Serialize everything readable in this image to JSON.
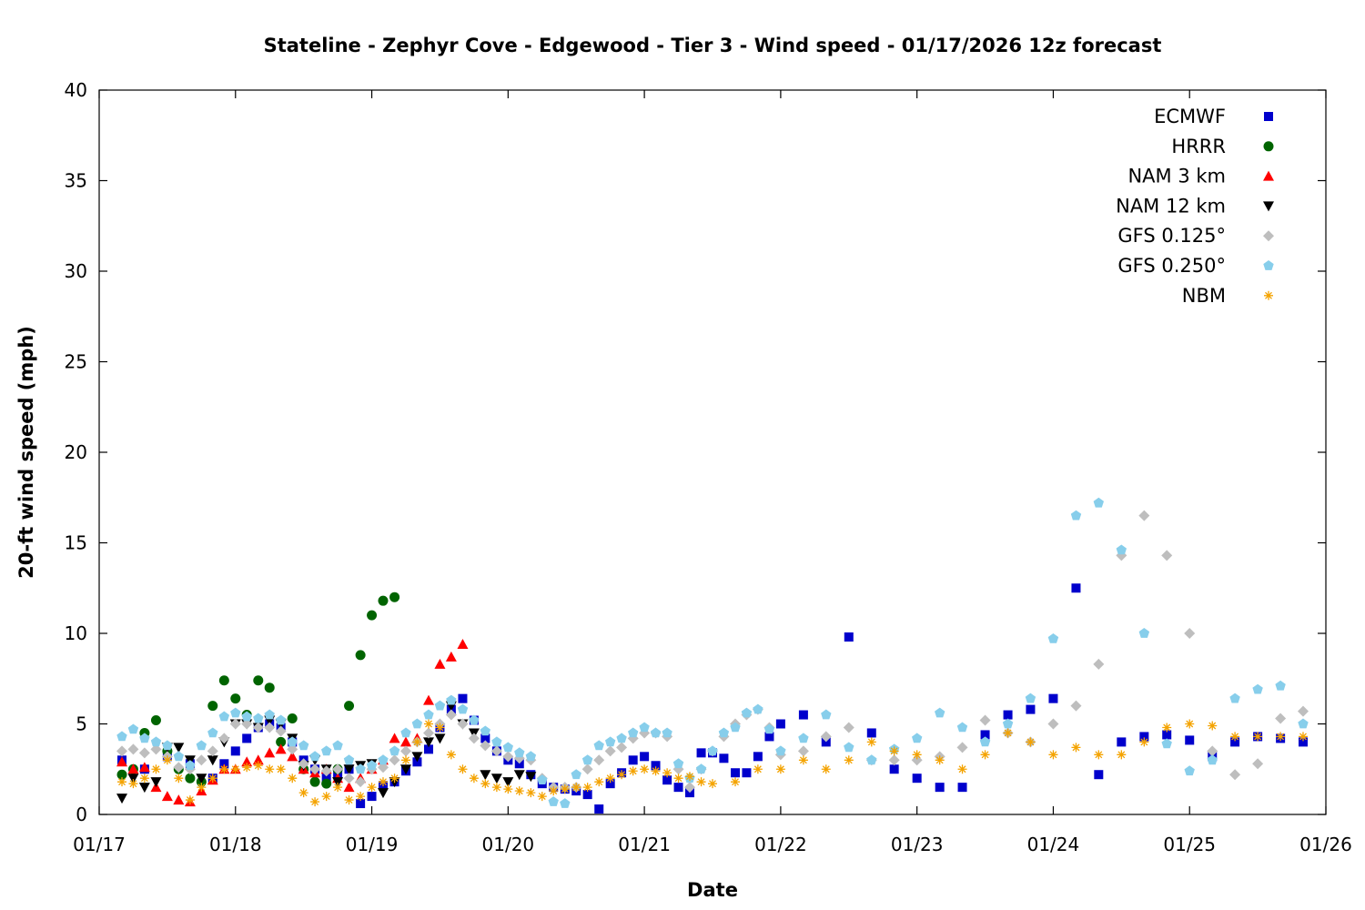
{
  "chart_data": {
    "type": "scatter",
    "title": "Stateline - Zephyr Cove - Edgewood - Tier 3 - Wind speed - 01/17/2026 12z forecast",
    "xlabel": "Date",
    "ylabel": "20-ft wind speed (mph)",
    "x_unit": "days since 01/17 00z",
    "xlim": [
      0,
      9
    ],
    "ylim": [
      0,
      40
    ],
    "x_ticks": [
      0,
      1,
      2,
      3,
      4,
      5,
      6,
      7,
      8,
      9
    ],
    "x_tick_labels": [
      "01/17",
      "01/18",
      "01/19",
      "01/20",
      "01/21",
      "01/22",
      "01/23",
      "01/24",
      "01/25",
      "01/26"
    ],
    "y_ticks": [
      0,
      5,
      10,
      15,
      20,
      25,
      30,
      35,
      40
    ],
    "y_tick_labels": [
      "0",
      "5",
      "10",
      "15",
      "20",
      "25",
      "30",
      "35",
      "40"
    ],
    "grid": false,
    "legend_position": "top-right",
    "series": [
      {
        "name": "ECMWF",
        "marker": "square",
        "color": "#0000cc",
        "x": [
          0.167,
          0.333,
          0.5,
          0.667,
          0.833,
          0.917,
          1.0,
          1.083,
          1.167,
          1.25,
          1.333,
          1.417,
          1.5,
          1.583,
          1.667,
          1.75,
          1.833,
          1.917,
          2.0,
          2.083,
          2.167,
          2.25,
          2.333,
          2.417,
          2.5,
          2.583,
          2.667,
          2.75,
          2.833,
          2.917,
          3.0,
          3.083,
          3.167,
          3.25,
          3.333,
          3.417,
          3.5,
          3.583,
          3.667,
          3.75,
          3.833,
          3.917,
          4.0,
          4.083,
          4.167,
          4.25,
          4.333,
          4.417,
          4.5,
          4.583,
          4.667,
          4.75,
          4.833,
          4.917,
          5.0,
          5.167,
          5.333,
          5.5,
          5.667,
          5.833,
          6.0,
          6.167,
          6.333,
          6.5,
          6.667,
          6.833,
          7.0,
          7.167,
          7.333,
          7.5,
          7.667,
          7.833,
          8.0,
          8.167,
          8.333,
          8.5,
          8.667,
          8.833
        ],
        "y": [
          3.0,
          2.5,
          3.2,
          2.8,
          2.0,
          2.8,
          3.5,
          4.2,
          4.8,
          5.0,
          4.8,
          4.0,
          3.0,
          2.5,
          2.0,
          2.2,
          2.5,
          0.6,
          1.0,
          1.6,
          1.8,
          2.4,
          2.9,
          3.6,
          4.8,
          5.8,
          6.4,
          5.2,
          4.2,
          3.5,
          3.0,
          2.8,
          2.2,
          1.7,
          1.5,
          1.4,
          1.3,
          1.1,
          0.3,
          1.7,
          2.3,
          3.0,
          3.2,
          2.7,
          1.9,
          1.5,
          1.2,
          3.4,
          3.4,
          3.1,
          2.3,
          2.3,
          3.2,
          4.3,
          5.0,
          5.5,
          4.0,
          9.8,
          4.5,
          2.5,
          2.0,
          1.5,
          1.5,
          4.4,
          5.5,
          5.8,
          6.4,
          12.5,
          2.2,
          4.0,
          4.3,
          4.4,
          4.1,
          3.2,
          4.0,
          4.3,
          4.2,
          4.0
        ]
      },
      {
        "name": "HRRR",
        "marker": "circle",
        "color": "#006400",
        "x": [
          0.167,
          0.25,
          0.333,
          0.417,
          0.5,
          0.583,
          0.667,
          0.75,
          0.833,
          0.917,
          1.0,
          1.083,
          1.167,
          1.25,
          1.333,
          1.417,
          1.5,
          1.583,
          1.667,
          1.75,
          1.833,
          1.917,
          2.0,
          2.083,
          2.167
        ],
        "y": [
          2.2,
          2.5,
          4.5,
          5.2,
          3.5,
          2.5,
          2.0,
          1.8,
          6.0,
          7.4,
          6.4,
          5.5,
          7.4,
          7.0,
          4.0,
          5.3,
          2.5,
          1.8,
          1.7,
          2.5,
          6.0,
          8.8,
          11.0,
          11.8,
          12.0
        ]
      },
      {
        "name": "NAM 3 km",
        "marker": "triangle-up",
        "color": "#ff0000",
        "x": [
          0.167,
          0.25,
          0.333,
          0.417,
          0.5,
          0.583,
          0.667,
          0.75,
          0.833,
          0.917,
          1.0,
          1.083,
          1.167,
          1.25,
          1.333,
          1.417,
          1.5,
          1.583,
          1.667,
          1.75,
          1.833,
          1.917,
          2.0,
          2.083,
          2.167,
          2.25,
          2.333,
          2.417,
          2.5,
          2.583,
          2.667
        ],
        "y": [
          2.9,
          2.5,
          2.6,
          1.5,
          1.0,
          0.8,
          0.7,
          1.3,
          1.9,
          2.5,
          2.5,
          2.9,
          3.0,
          3.4,
          3.6,
          3.2,
          2.5,
          2.3,
          2.5,
          2.0,
          1.5,
          2.0,
          2.5,
          3.0,
          4.2,
          4.0,
          4.2,
          6.3,
          8.3,
          8.7,
          9.4
        ]
      },
      {
        "name": "NAM 12 km",
        "marker": "triangle-down",
        "color": "#000000",
        "x": [
          0.167,
          0.25,
          0.333,
          0.417,
          0.5,
          0.583,
          0.667,
          0.75,
          0.833,
          0.917,
          1.0,
          1.083,
          1.167,
          1.25,
          1.333,
          1.417,
          1.5,
          1.583,
          1.667,
          1.75,
          1.833,
          1.917,
          2.0,
          2.083,
          2.167,
          2.25,
          2.333,
          2.417,
          2.5,
          2.583,
          2.667,
          2.75,
          2.833,
          2.917,
          3.0,
          3.083,
          3.167
        ],
        "y": [
          0.9,
          2.0,
          1.5,
          1.8,
          3.7,
          3.7,
          3.0,
          2.0,
          3.0,
          4.0,
          5.0,
          5.0,
          4.8,
          5.2,
          5.0,
          4.2,
          2.7,
          3.0,
          2.5,
          1.8,
          2.5,
          2.7,
          2.8,
          1.2,
          1.8,
          2.5,
          3.2,
          4.0,
          4.2,
          6.0,
          5.0,
          4.5,
          2.2,
          2.0,
          1.8,
          2.2,
          2.1
        ]
      },
      {
        "name": "GFS 0.125°",
        "marker": "diamond",
        "color": "#bebebe",
        "x": [
          0.167,
          0.25,
          0.333,
          0.417,
          0.5,
          0.583,
          0.667,
          0.75,
          0.833,
          0.917,
          1.0,
          1.083,
          1.167,
          1.25,
          1.333,
          1.417,
          1.5,
          1.583,
          1.667,
          1.75,
          1.833,
          1.917,
          2.0,
          2.083,
          2.167,
          2.25,
          2.333,
          2.417,
          2.5,
          2.583,
          2.667,
          2.75,
          2.833,
          2.917,
          3.0,
          3.083,
          3.167,
          3.25,
          3.333,
          3.417,
          3.5,
          3.583,
          3.667,
          3.75,
          3.833,
          3.917,
          4.0,
          4.083,
          4.167,
          4.25,
          4.333,
          4.417,
          4.5,
          4.583,
          4.667,
          4.75,
          4.833,
          4.917,
          5.0,
          5.167,
          5.333,
          5.5,
          5.667,
          5.833,
          6.0,
          6.167,
          6.333,
          6.5,
          6.667,
          6.833,
          7.0,
          7.167,
          7.333,
          7.5,
          7.667,
          7.833,
          8.0,
          8.167,
          8.333,
          8.5,
          8.667,
          8.833
        ],
        "y": [
          3.5,
          3.6,
          3.4,
          3.6,
          3.2,
          2.6,
          2.5,
          3.0,
          3.5,
          4.2,
          5.0,
          5.0,
          4.8,
          4.8,
          4.6,
          3.6,
          2.8,
          2.5,
          2.4,
          2.5,
          2.0,
          1.8,
          2.5,
          2.6,
          3.0,
          3.5,
          4.0,
          4.5,
          5.0,
          5.5,
          5.0,
          4.2,
          3.8,
          3.5,
          3.2,
          3.1,
          3.0,
          2.0,
          1.5,
          1.5,
          1.5,
          2.5,
          3.0,
          3.5,
          3.7,
          4.2,
          4.5,
          4.5,
          4.3,
          2.5,
          1.5,
          2.5,
          3.5,
          4.3,
          5.0,
          5.5,
          5.8,
          4.8,
          3.3,
          3.5,
          4.3,
          4.8,
          3.0,
          3.0,
          3.0,
          3.2,
          3.7,
          5.2,
          4.5,
          4.0,
          5.0,
          6.0,
          8.3,
          14.3,
          16.5,
          14.3,
          10.0,
          3.5,
          2.2,
          2.8,
          5.3,
          5.7
        ]
      },
      {
        "name": "GFS 0.250°",
        "marker": "pentagon",
        "color": "#87ceeb",
        "x": [
          0.167,
          0.25,
          0.333,
          0.417,
          0.5,
          0.583,
          0.667,
          0.75,
          0.833,
          0.917,
          1.0,
          1.083,
          1.167,
          1.25,
          1.333,
          1.417,
          1.5,
          1.583,
          1.667,
          1.75,
          1.833,
          1.917,
          2.0,
          2.083,
          2.167,
          2.25,
          2.333,
          2.417,
          2.5,
          2.583,
          2.667,
          2.75,
          2.833,
          2.917,
          3.0,
          3.083,
          3.167,
          3.25,
          3.333,
          3.417,
          3.5,
          3.583,
          3.667,
          3.75,
          3.833,
          3.917,
          4.0,
          4.083,
          4.167,
          4.25,
          4.333,
          4.417,
          4.5,
          4.583,
          4.667,
          4.75,
          4.833,
          4.917,
          5.0,
          5.167,
          5.333,
          5.5,
          5.667,
          5.833,
          6.0,
          6.167,
          6.333,
          6.5,
          6.667,
          6.833,
          7.0,
          7.167,
          7.333,
          7.5,
          7.667,
          7.833,
          8.0,
          8.167,
          8.333,
          8.5,
          8.667,
          8.833
        ],
        "y": [
          4.3,
          4.7,
          4.2,
          4.0,
          3.8,
          3.2,
          2.7,
          3.8,
          4.5,
          5.4,
          5.6,
          5.4,
          5.3,
          5.5,
          5.2,
          4.0,
          3.8,
          3.2,
          3.5,
          3.8,
          3.0,
          2.5,
          2.7,
          3.0,
          3.5,
          4.5,
          5.0,
          5.5,
          6.0,
          6.3,
          5.8,
          5.2,
          4.6,
          4.0,
          3.7,
          3.4,
          3.2,
          1.9,
          0.7,
          0.6,
          2.2,
          3.0,
          3.8,
          4.0,
          4.2,
          4.5,
          4.8,
          4.5,
          4.5,
          2.8,
          2.0,
          2.5,
          3.5,
          4.5,
          4.8,
          5.6,
          5.8,
          4.7,
          3.5,
          4.2,
          5.5,
          3.7,
          3.0,
          3.6,
          4.2,
          5.6,
          4.8,
          4.0,
          5.0,
          6.4,
          9.7,
          16.5,
          17.2,
          14.6,
          10.0,
          3.9,
          2.4,
          3.0,
          6.4,
          6.9,
          7.1,
          5.0
        ]
      },
      {
        "name": "NBM",
        "marker": "asterisk",
        "color": "#f4a300",
        "x": [
          0.167,
          0.25,
          0.333,
          0.417,
          0.5,
          0.583,
          0.667,
          0.75,
          0.833,
          0.917,
          1.0,
          1.083,
          1.167,
          1.25,
          1.333,
          1.417,
          1.5,
          1.583,
          1.667,
          1.75,
          1.833,
          1.917,
          2.0,
          2.083,
          2.167,
          2.25,
          2.333,
          2.417,
          2.5,
          2.583,
          2.667,
          2.75,
          2.833,
          2.917,
          3.0,
          3.083,
          3.167,
          3.25,
          3.333,
          3.417,
          3.5,
          3.583,
          3.667,
          3.75,
          3.833,
          3.917,
          4.0,
          4.083,
          4.167,
          4.25,
          4.333,
          4.417,
          4.5,
          4.667,
          4.833,
          5.0,
          5.167,
          5.333,
          5.5,
          5.667,
          5.833,
          6.0,
          6.167,
          6.333,
          6.5,
          6.667,
          6.833,
          7.0,
          7.167,
          7.333,
          7.5,
          7.667,
          7.833,
          8.0,
          8.167,
          8.333,
          8.5,
          8.667,
          8.833
        ],
        "y": [
          1.8,
          1.7,
          2.0,
          2.5,
          3.0,
          2.0,
          0.8,
          1.5,
          2.0,
          2.5,
          2.5,
          2.6,
          2.7,
          2.5,
          2.5,
          2.0,
          1.2,
          0.7,
          1.0,
          1.5,
          0.8,
          1.0,
          1.5,
          1.8,
          2.0,
          3.0,
          4.0,
          5.0,
          4.8,
          3.3,
          2.5,
          2.0,
          1.7,
          1.5,
          1.4,
          1.3,
          1.2,
          1.0,
          1.3,
          1.4,
          1.5,
          1.5,
          1.8,
          2.0,
          2.2,
          2.4,
          2.5,
          2.4,
          2.3,
          2.0,
          2.1,
          1.8,
          1.7,
          1.8,
          2.5,
          2.5,
          3.0,
          2.5,
          3.0,
          4.0,
          3.5,
          3.3,
          3.0,
          2.5,
          3.3,
          4.5,
          4.0,
          3.3,
          3.7,
          3.3,
          3.3,
          4.0,
          4.8,
          5.0,
          4.9,
          4.3,
          4.3,
          4.3,
          4.3
        ]
      }
    ]
  }
}
